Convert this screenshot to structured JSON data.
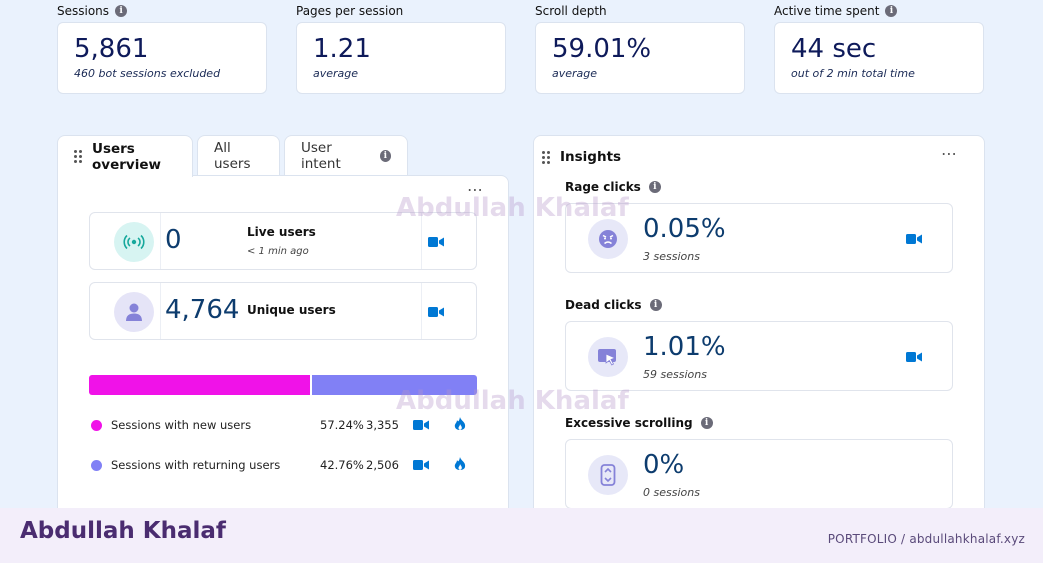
{
  "stats": [
    {
      "label": "Sessions",
      "has_info": true,
      "value": "5,861",
      "sub": "460 bot sessions excluded"
    },
    {
      "label": "Pages per session",
      "has_info": false,
      "value": "1.21",
      "sub": "average"
    },
    {
      "label": "Scroll depth",
      "has_info": false,
      "value": "59.01%",
      "sub": "average"
    },
    {
      "label": "Active time spent",
      "has_info": true,
      "value": "44 sec",
      "sub": "out of 2 min total time"
    }
  ],
  "users_panel": {
    "tabs": [
      {
        "label": "Users overview",
        "active": true
      },
      {
        "label": "All users",
        "active": false
      },
      {
        "label": "User intent",
        "active": false,
        "has_info": true
      }
    ],
    "menu_icon": "⋯",
    "live": {
      "value": "0",
      "label": "Live users",
      "sub": "< 1 min ago"
    },
    "unique": {
      "value": "4,764",
      "label": "Unique users"
    },
    "split": {
      "new_fraction": 0.5724,
      "new_color": "#f012e8",
      "returning_color": "#8180f5"
    },
    "legend": [
      {
        "label": "Sessions with new users",
        "percent": "57.24%",
        "count": "3,355",
        "color": "#f012e8"
      },
      {
        "label": "Sessions with returning users",
        "percent": "42.76%",
        "count": "2,506",
        "color": "#8180f5"
      }
    ]
  },
  "insights": {
    "title": "Insights",
    "menu_icon": "⋯",
    "items": [
      {
        "title": "Rage clicks",
        "value": "0.05%",
        "sub": "3 sessions",
        "icon": "angry-face-icon"
      },
      {
        "title": "Dead clicks",
        "value": "1.01%",
        "sub": "59 sessions",
        "icon": "dead-click-icon"
      },
      {
        "title": "Excessive scrolling",
        "value": "0%",
        "sub": "0 sessions",
        "icon": "scroll-icon"
      }
    ]
  },
  "watermark": "Abdullah Khalaf",
  "footer": {
    "name": "Abdullah Khalaf",
    "link": "PORTFOLIO  /  abdullahkhalaf.xyz"
  },
  "colors": {
    "accent": "#0078d4",
    "value_text": "#0d3c6e",
    "background": "#eaf2fd"
  }
}
